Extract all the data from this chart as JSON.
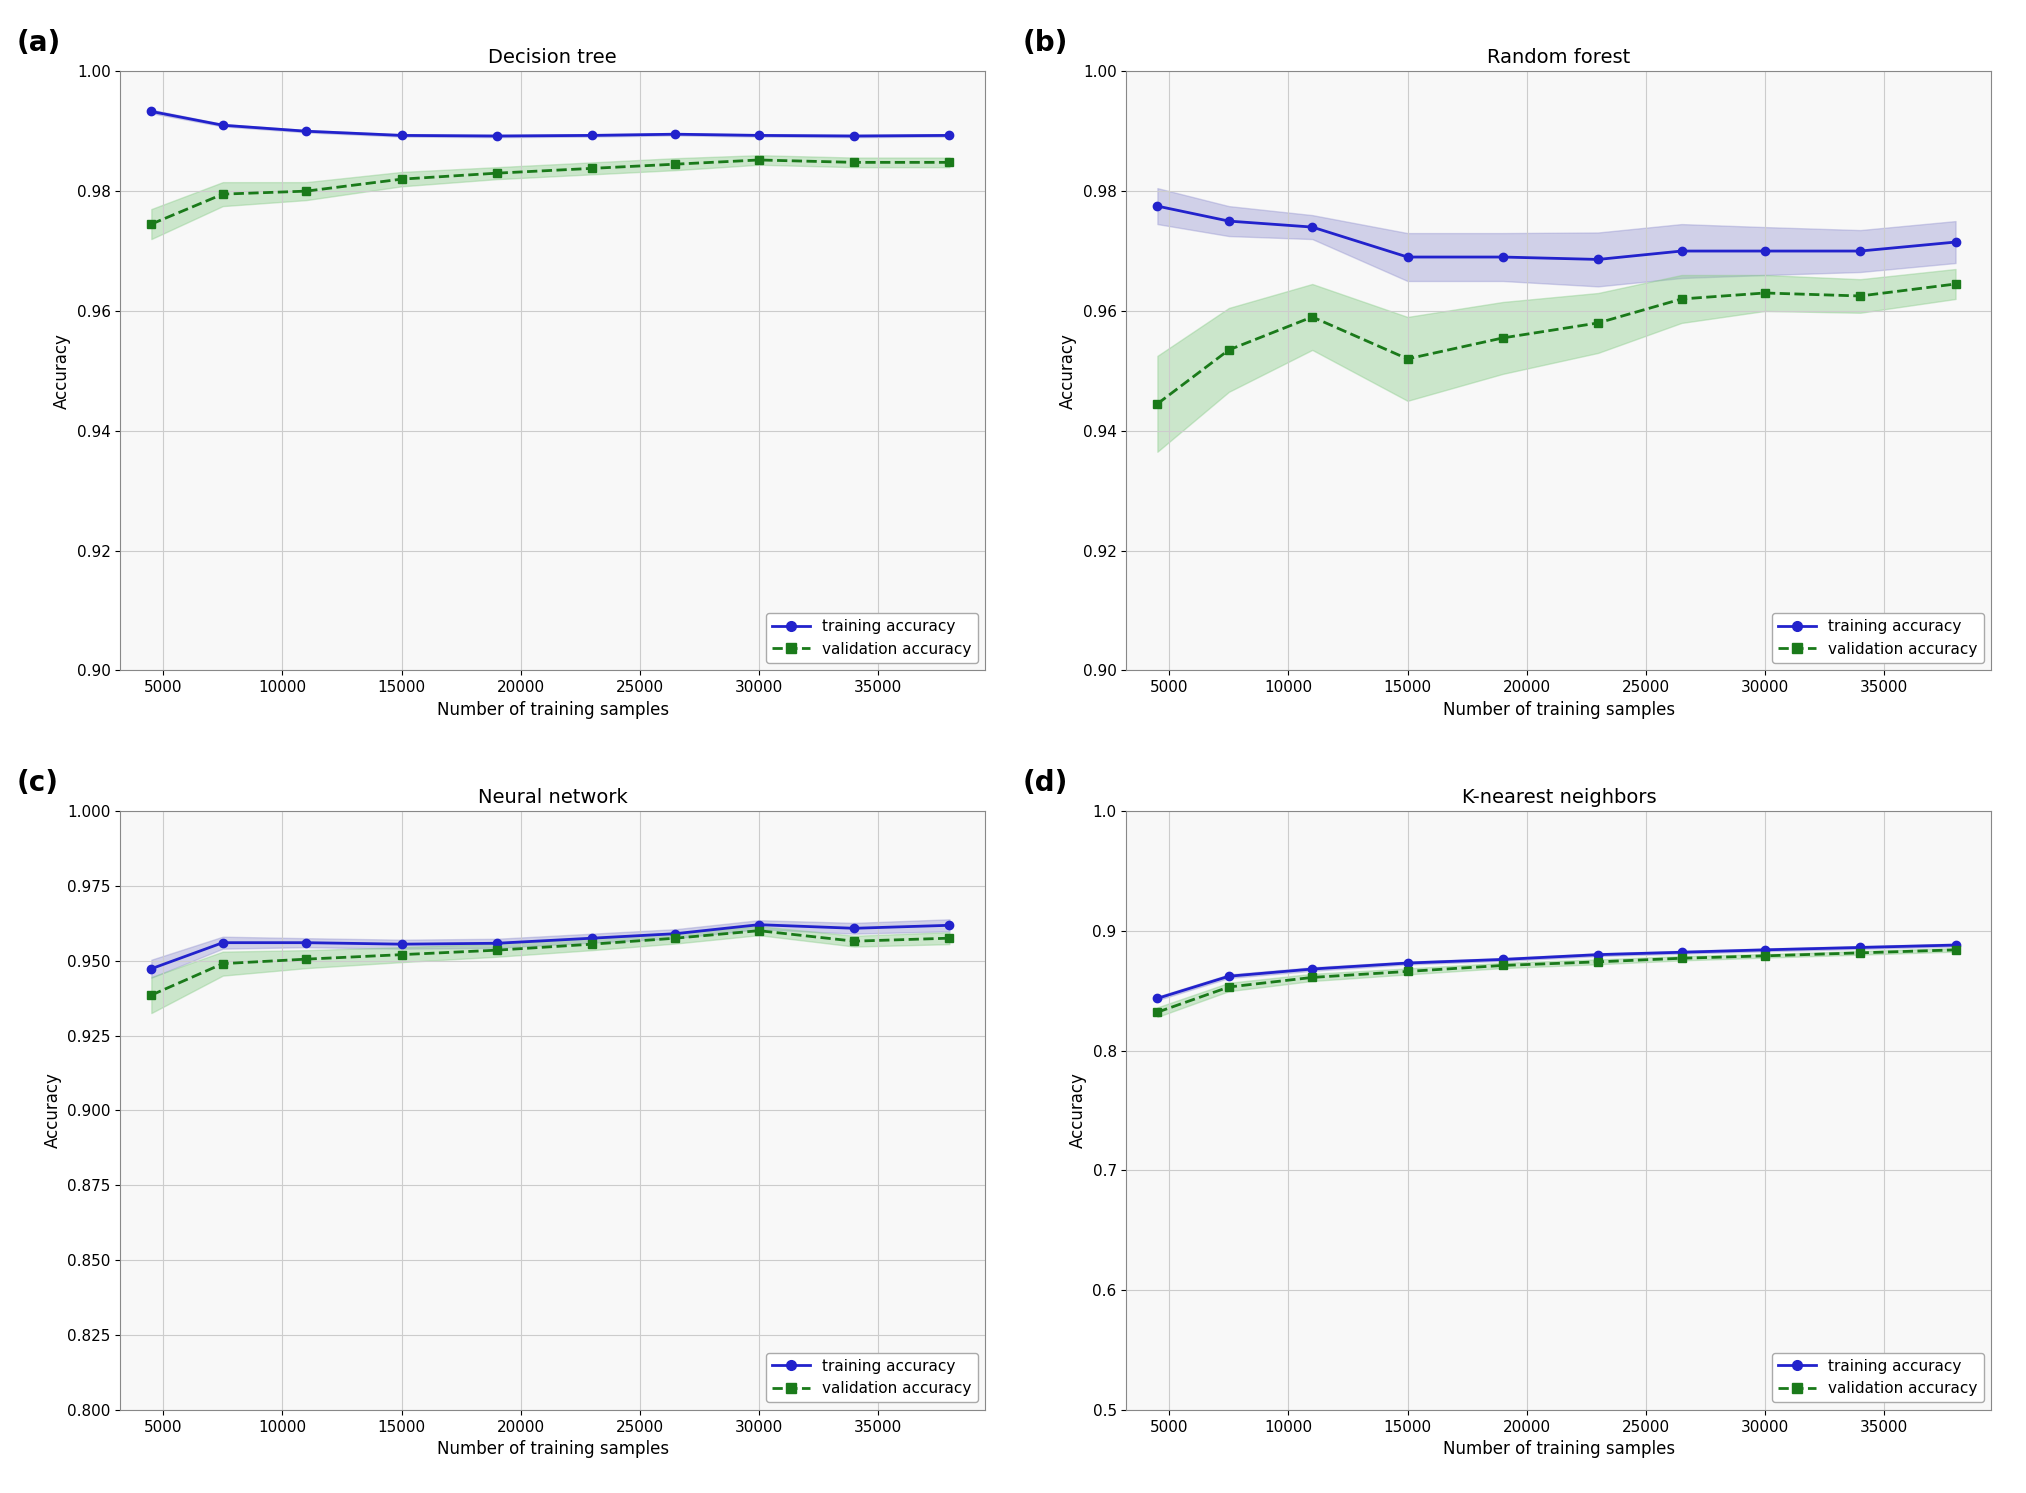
{
  "x": [
    4500,
    7500,
    11000,
    15000,
    19000,
    23000,
    26500,
    30000,
    34000,
    38000
  ],
  "titles": [
    "Decision tree",
    "Random forest",
    "Neural network",
    "K-nearest neighbors"
  ],
  "panel_labels": [
    "(a)",
    "(b)",
    "(c)",
    "(d)"
  ],
  "xlabel": "Number of training samples",
  "ylabel": "Accuracy",
  "train_mean": {
    "a": [
      0.9933,
      0.991,
      0.99,
      0.9893,
      0.9892,
      0.9893,
      0.9895,
      0.9893,
      0.9892,
      0.9893
    ],
    "b": [
      0.9775,
      0.975,
      0.974,
      0.969,
      0.969,
      0.9686,
      0.97,
      0.97,
      0.97,
      0.9715
    ],
    "c": [
      0.9473,
      0.956,
      0.956,
      0.9555,
      0.9558,
      0.9575,
      0.959,
      0.962,
      0.9608,
      0.9618
    ],
    "d": [
      0.8435,
      0.862,
      0.868,
      0.873,
      0.876,
      0.88,
      0.882,
      0.884,
      0.886,
      0.888
    ]
  },
  "train_std": {
    "a": [
      0.0003,
      0.0002,
      0.0002,
      0.0002,
      0.0002,
      0.0002,
      0.0002,
      0.0002,
      0.0002,
      0.0002
    ],
    "b": [
      0.003,
      0.0025,
      0.002,
      0.004,
      0.004,
      0.0045,
      0.0045,
      0.004,
      0.0035,
      0.0035
    ],
    "c": [
      0.003,
      0.002,
      0.0015,
      0.0015,
      0.0015,
      0.0015,
      0.0015,
      0.0015,
      0.0018,
      0.002
    ],
    "d": [
      0.0015,
      0.0015,
      0.0015,
      0.0012,
      0.0012,
      0.0012,
      0.0012,
      0.0012,
      0.0012,
      0.0012
    ]
  },
  "val_mean": {
    "a": [
      0.9745,
      0.9795,
      0.98,
      0.982,
      0.983,
      0.9838,
      0.9845,
      0.9852,
      0.9848,
      0.9848
    ],
    "b": [
      0.9445,
      0.9535,
      0.959,
      0.952,
      0.9555,
      0.958,
      0.962,
      0.963,
      0.9625,
      0.9645
    ],
    "c": [
      0.9385,
      0.949,
      0.9505,
      0.952,
      0.9535,
      0.9555,
      0.9575,
      0.96,
      0.9565,
      0.9575
    ],
    "d": [
      0.832,
      0.853,
      0.861,
      0.866,
      0.871,
      0.874,
      0.877,
      0.879,
      0.8815,
      0.884
    ]
  },
  "val_std": {
    "a": [
      0.0025,
      0.002,
      0.0015,
      0.0012,
      0.001,
      0.001,
      0.001,
      0.0008,
      0.0008,
      0.0008
    ],
    "b": [
      0.008,
      0.007,
      0.0055,
      0.007,
      0.006,
      0.005,
      0.004,
      0.003,
      0.0028,
      0.0025
    ],
    "c": [
      0.006,
      0.004,
      0.003,
      0.0025,
      0.0022,
      0.002,
      0.0018,
      0.0015,
      0.0018,
      0.002
    ],
    "d": [
      0.004,
      0.0035,
      0.003,
      0.0025,
      0.0022,
      0.002,
      0.0018,
      0.0015,
      0.0015,
      0.0015
    ]
  },
  "ylims": {
    "a": [
      0.9,
      1.0
    ],
    "b": [
      0.9,
      1.0
    ],
    "c": [
      0.8,
      1.0
    ],
    "d": [
      0.5,
      1.0
    ]
  },
  "yticks": {
    "a": [
      0.9,
      0.92,
      0.94,
      0.96,
      0.98,
      1.0
    ],
    "b": [
      0.9,
      0.92,
      0.94,
      0.96,
      0.98,
      1.0
    ],
    "c": [
      0.8,
      0.825,
      0.85,
      0.875,
      0.9,
      0.925,
      0.95,
      0.975,
      1.0
    ],
    "d": [
      0.5,
      0.6,
      0.7,
      0.8,
      0.9,
      1.0
    ]
  },
  "xticks": [
    5000,
    10000,
    15000,
    20000,
    25000,
    30000,
    35000
  ],
  "train_color": "#2222cc",
  "val_color": "#1a7a1a",
  "train_fill_color": "#8888cc",
  "val_fill_color": "#88cc88",
  "background_color": "#f8f8f8",
  "grid_color": "#cccccc"
}
